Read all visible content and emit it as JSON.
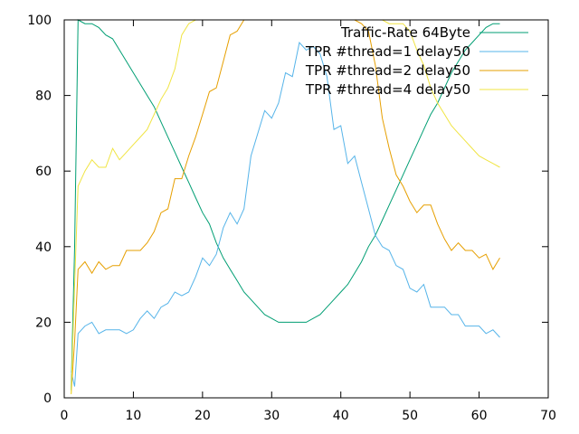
{
  "chart_data": {
    "type": "line",
    "title": "",
    "xlabel": "",
    "ylabel": "",
    "xlim": [
      0,
      70
    ],
    "ylim": [
      0,
      100
    ],
    "xticks": [
      "0",
      "10",
      "20",
      "30",
      "40",
      "50",
      "60",
      "70"
    ],
    "yticks": [
      "0",
      "20",
      "40",
      "60",
      "80",
      "100"
    ],
    "xtick_values": [
      0,
      10,
      20,
      30,
      40,
      50,
      60,
      70
    ],
    "ytick_values": [
      0,
      20,
      40,
      60,
      80,
      100
    ],
    "grid": false,
    "legend_position": "top-right",
    "series": [
      {
        "name": "Traffic-Rate 64Byte",
        "color": "#009e73",
        "x": [
          1,
          1.5,
          2,
          3,
          4,
          5,
          6,
          7,
          8,
          9,
          10,
          11,
          12,
          13,
          14,
          15,
          16,
          17,
          18,
          19,
          20,
          21,
          22,
          23,
          24,
          25,
          26,
          27,
          28,
          29,
          30,
          31,
          32,
          33,
          34,
          35,
          36,
          37,
          38,
          39,
          40,
          41,
          42,
          43,
          44,
          45,
          46,
          47,
          48,
          49,
          50,
          51,
          52,
          53,
          54,
          55,
          56,
          57,
          58,
          59,
          60,
          61,
          62,
          63
        ],
        "y": [
          2,
          40,
          100,
          99,
          99,
          98,
          96,
          95,
          92,
          89,
          86,
          83,
          80,
          77,
          73,
          69,
          65,
          61,
          57,
          53,
          49,
          46,
          41,
          37,
          34,
          31,
          28,
          26,
          24,
          22,
          21,
          20,
          20,
          20,
          20,
          20,
          21,
          22,
          24,
          26,
          28,
          30,
          33,
          36,
          40,
          43,
          47,
          51,
          55,
          59,
          63,
          67,
          71,
          75,
          78,
          82,
          86,
          89,
          92,
          94,
          96,
          98,
          99,
          99
        ]
      },
      {
        "name": "TPR #thread=1 delay50",
        "color": "#56b4e9",
        "x": [
          1,
          1.5,
          2,
          3,
          4,
          5,
          6,
          7,
          8,
          9,
          10,
          11,
          12,
          13,
          14,
          15,
          16,
          17,
          18,
          19,
          20,
          21,
          22,
          23,
          24,
          25,
          26,
          27,
          28,
          29,
          30,
          31,
          32,
          33,
          34,
          35,
          36,
          37,
          38,
          39,
          40,
          41,
          42,
          43,
          44,
          45,
          46,
          47,
          48,
          49,
          50,
          51,
          52,
          53,
          54,
          55,
          56,
          57,
          58,
          59,
          60,
          61,
          62,
          63
        ],
        "y": [
          7,
          3,
          17,
          19,
          20,
          17,
          18,
          18,
          18,
          17,
          18,
          21,
          23,
          21,
          24,
          25,
          28,
          27,
          28,
          32,
          37,
          35,
          38,
          45,
          49,
          46,
          50,
          64,
          70,
          76,
          74,
          78,
          86,
          85,
          94,
          92,
          93,
          91,
          85,
          71,
          72,
          62,
          64,
          57,
          50,
          43,
          40,
          39,
          35,
          34,
          29,
          28,
          30,
          24,
          24,
          24,
          22,
          22,
          19,
          19,
          19,
          17,
          18,
          16
        ]
      },
      {
        "name": "TPR #thread=2 delay50",
        "color": "#e69f00",
        "x": [
          1,
          1.5,
          2,
          3,
          4,
          5,
          6,
          7,
          8,
          9,
          10,
          11,
          12,
          13,
          14,
          15,
          16,
          17,
          18,
          19,
          20,
          21,
          22,
          23,
          24,
          25,
          26,
          27,
          28,
          29,
          30,
          31,
          32,
          33,
          34,
          35,
          36,
          37,
          38,
          39,
          40,
          41,
          42,
          43,
          44,
          45,
          46,
          47,
          48,
          49,
          50,
          51,
          52,
          53,
          54,
          55,
          56,
          57,
          58,
          59,
          60,
          61,
          62,
          63
        ],
        "y": [
          1,
          15,
          34,
          36,
          33,
          36,
          34,
          35,
          35,
          39,
          39,
          39,
          41,
          44,
          49,
          50,
          58,
          58,
          64,
          69,
          75,
          81,
          82,
          89,
          96,
          97,
          100,
          100,
          100,
          100,
          100,
          100,
          100,
          100,
          100,
          100,
          100,
          100,
          100,
          100,
          100,
          100,
          100,
          99,
          97,
          88,
          74,
          66,
          59,
          56,
          52,
          49,
          51,
          51,
          46,
          42,
          39,
          41,
          39,
          39,
          37,
          38,
          34,
          37
        ]
      },
      {
        "name": "TPR #thread=4 delay50",
        "color": "#f0e442",
        "x": [
          1,
          1.5,
          2,
          3,
          4,
          5,
          6,
          7,
          8,
          9,
          10,
          11,
          12,
          13,
          14,
          15,
          16,
          17,
          18,
          19,
          20,
          21,
          22,
          23,
          24,
          25,
          26,
          27,
          28,
          29,
          30,
          31,
          32,
          33,
          34,
          35,
          36,
          37,
          38,
          39,
          40,
          41,
          42,
          43,
          44,
          45,
          46,
          47,
          48,
          49,
          50,
          51,
          52,
          53,
          54,
          55,
          56,
          57,
          58,
          59,
          60,
          61,
          62,
          63
        ],
        "y": [
          1,
          30,
          56,
          60,
          63,
          61,
          61,
          66,
          63,
          65,
          67,
          69,
          71,
          75,
          79,
          82,
          87,
          96,
          99,
          100,
          100,
          100,
          100,
          100,
          100,
          100,
          100,
          100,
          100,
          100,
          100,
          100,
          100,
          100,
          100,
          100,
          100,
          100,
          100,
          100,
          100,
          100,
          100,
          100,
          100,
          100,
          100,
          99,
          99,
          99,
          97,
          92,
          88,
          82,
          78,
          75,
          72,
          70,
          68,
          66,
          64,
          63,
          62,
          61
        ]
      }
    ]
  }
}
